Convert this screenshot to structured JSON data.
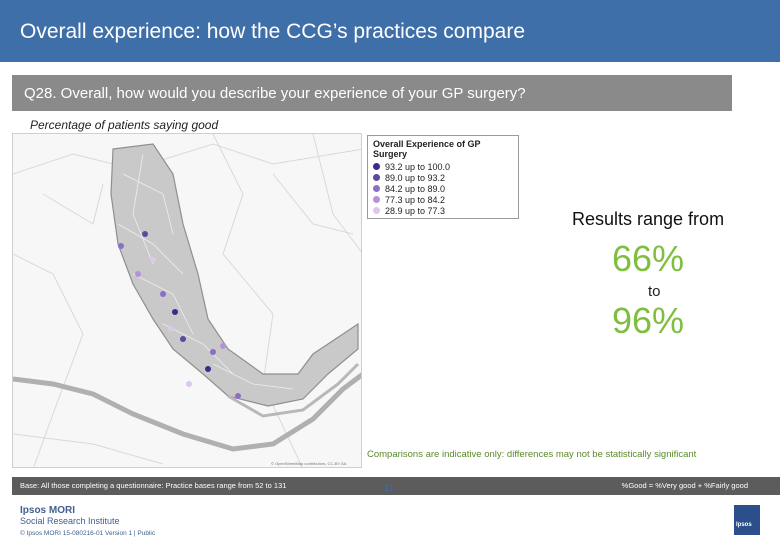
{
  "header": {
    "title": "Overall experience: how the CCG’s practices compare"
  },
  "question": {
    "text": "Q28. Overall, how would you describe your experience of your GP surgery?"
  },
  "subtitle": "Percentage of patients saying good",
  "legend": {
    "title": "Overall Experience of GP Surgery",
    "items": [
      {
        "label": "93.2 up to 100.0",
        "color": "#3a2b8c"
      },
      {
        "label": "89.0 up to  93.2",
        "color": "#5b4a9e"
      },
      {
        "label": "84.2 up to  89.0",
        "color": "#8a6fc4"
      },
      {
        "label": "77.3 up to  84.2",
        "color": "#b693d9"
      },
      {
        "label": "28.9 up to  77.3",
        "color": "#dcc8ec"
      }
    ]
  },
  "results": {
    "label": "Results range from",
    "min": "66%",
    "to": "to",
    "max": "96%"
  },
  "note": "Comparisons are indicative only: differences may not be statistically significant",
  "base": {
    "text": "Base: All those completing a questionnaire: Practice bases range from 52 to 131",
    "good_definition": "%Good = %Very good + %Fairly good"
  },
  "footer": {
    "logo_line1": "Ipsos MORI",
    "logo_line2": "Social Research Institute",
    "copyright": "© Ipsos MORI     15-080216-01 Version 1 | Public",
    "page_number": "11",
    "brand": "Ipsos"
  },
  "map": {
    "attribution": "© OpenStreetMap contributors, CC-BY-SA"
  }
}
